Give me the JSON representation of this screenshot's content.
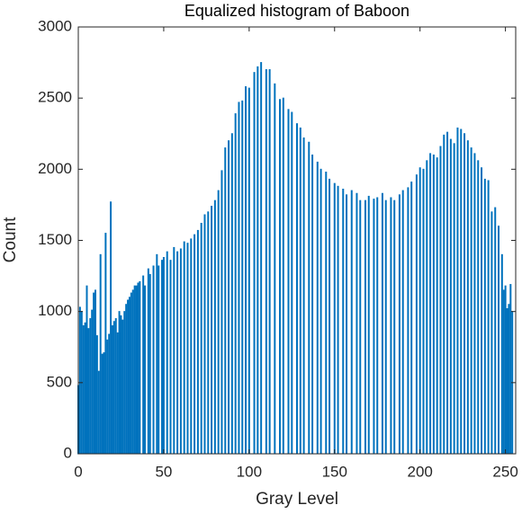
{
  "chart_data": {
    "type": "bar",
    "title": "Equalized histogram of Baboon",
    "x_label": "Gray Level",
    "y_label": "Count",
    "color": "#0072bd",
    "x": [
      0,
      1,
      2,
      3,
      4,
      5,
      6,
      7,
      8,
      9,
      10,
      11,
      12,
      13,
      14,
      15,
      16,
      17,
      18,
      19,
      20,
      21,
      22,
      23,
      24,
      25,
      26,
      27,
      28,
      29,
      30,
      31,
      32,
      33,
      34,
      35,
      36,
      38,
      39,
      41,
      42,
      44,
      46,
      47,
      49,
      50,
      52,
      54,
      56,
      58,
      60,
      62,
      64,
      66,
      68,
      70,
      72,
      74,
      76,
      78,
      80,
      82,
      84,
      86,
      88,
      90,
      92,
      94,
      96,
      98,
      100,
      103,
      105,
      107,
      110,
      112,
      115,
      118,
      120,
      123,
      125,
      128,
      130,
      132,
      135,
      137,
      140,
      142,
      145,
      147,
      150,
      152,
      155,
      157,
      160,
      163,
      165,
      168,
      170,
      173,
      175,
      178,
      180,
      183,
      185,
      188,
      190,
      193,
      195,
      198,
      200,
      202,
      204,
      206,
      208,
      210,
      212,
      214,
      216,
      218,
      220,
      222,
      224,
      226,
      228,
      230,
      232,
      234,
      236,
      238,
      240,
      242,
      244,
      246,
      248,
      249,
      250,
      251,
      252,
      253,
      254
    ],
    "values": [
      480,
      1030,
      1000,
      900,
      920,
      1180,
      880,
      950,
      1010,
      1130,
      1150,
      830,
      580,
      1400,
      700,
      710,
      1550,
      800,
      840,
      1770,
      900,
      930,
      950,
      850,
      1000,
      970,
      940,
      1000,
      1050,
      1080,
      1100,
      1130,
      1150,
      1180,
      1180,
      1200,
      1210,
      1250,
      1180,
      1300,
      1260,
      1320,
      1400,
      1320,
      1360,
      1380,
      1420,
      1360,
      1450,
      1420,
      1440,
      1490,
      1480,
      1510,
      1540,
      1570,
      1620,
      1680,
      1700,
      1740,
      1780,
      1850,
      1990,
      2150,
      2200,
      2250,
      2390,
      2470,
      2480,
      2580,
      2570,
      2680,
      2720,
      2750,
      2700,
      2700,
      2600,
      2490,
      2500,
      2420,
      2400,
      2320,
      2290,
      2220,
      2190,
      2100,
      2050,
      2000,
      1980,
      1930,
      1900,
      1880,
      1860,
      1820,
      1850,
      1830,
      1780,
      1780,
      1810,
      1790,
      1800,
      1830,
      1780,
      1800,
      1780,
      1820,
      1850,
      1870,
      1910,
      1960,
      2010,
      2000,
      2060,
      2110,
      2100,
      2080,
      2160,
      2240,
      2260,
      2210,
      2180,
      2290,
      2280,
      2250,
      2200,
      2150,
      2110,
      2060,
      2010,
      1930,
      1920,
      1700,
      1730,
      1600,
      1400,
      1150,
      1180,
      1020,
      1050,
      1190,
      1000
    ],
    "xlim": [
      0,
      256
    ],
    "xticks": [
      0,
      50,
      100,
      150,
      200,
      250
    ],
    "ylim": [
      0,
      3000
    ],
    "yticks": [
      0,
      500,
      1000,
      1500,
      2000,
      2500,
      3000
    ]
  }
}
